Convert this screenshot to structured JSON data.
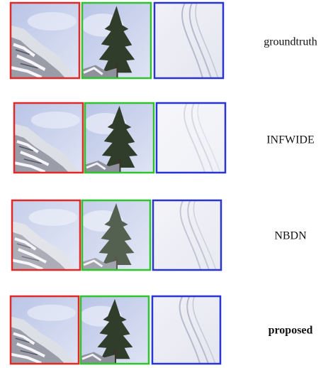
{
  "rows": [
    {
      "label": "groundtruth"
    },
    {
      "label": "INFWIDE"
    },
    {
      "label": "NBDN"
    },
    {
      "label": "proposed"
    }
  ]
}
